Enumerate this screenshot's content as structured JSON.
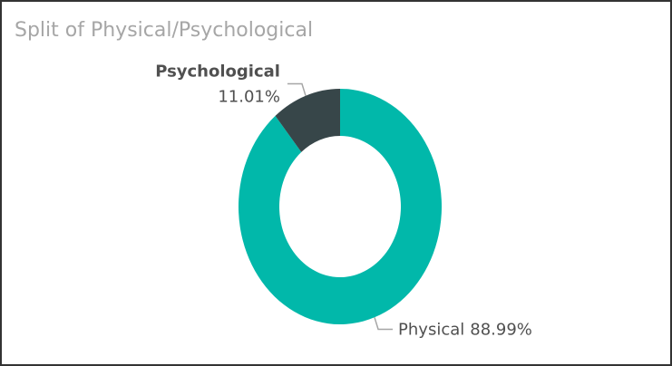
{
  "chart_data": {
    "type": "donut",
    "title": "Split of Physical/Psychological",
    "categories": [
      "Physical",
      "Psychological"
    ],
    "values": [
      88.99,
      11.01
    ],
    "value_labels": [
      "88.99%",
      "11.01%"
    ],
    "colors": [
      "#01b8aa",
      "#374649"
    ]
  }
}
